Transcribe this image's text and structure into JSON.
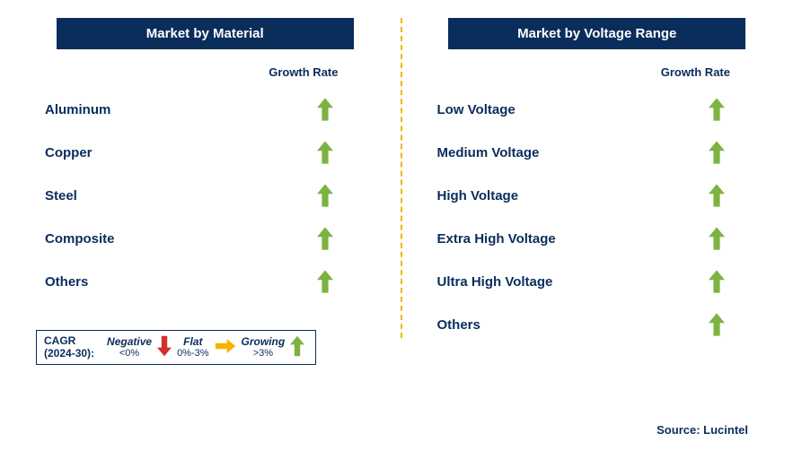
{
  "colors": {
    "brand_dark": "#0a2d5c",
    "arrow_green": "#7cb342",
    "arrow_red": "#d32f2f",
    "arrow_yellow": "#f4b400",
    "divider": "#f4b400",
    "bg": "#ffffff"
  },
  "left_panel": {
    "title": "Market by Material",
    "growth_label": "Growth Rate",
    "rows": [
      {
        "label": "Aluminum",
        "trend": "up"
      },
      {
        "label": "Copper",
        "trend": "up"
      },
      {
        "label": "Steel",
        "trend": "up"
      },
      {
        "label": "Composite",
        "trend": "up"
      },
      {
        "label": "Others",
        "trend": "up"
      }
    ]
  },
  "right_panel": {
    "title": "Market by Voltage Range",
    "growth_label": "Growth Rate",
    "rows": [
      {
        "label": "Low Voltage",
        "trend": "up"
      },
      {
        "label": "Medium Voltage",
        "trend": "up"
      },
      {
        "label": "High Voltage",
        "trend": "up"
      },
      {
        "label": "Extra High Voltage",
        "trend": "up"
      },
      {
        "label": "Ultra High Voltage",
        "trend": "up"
      },
      {
        "label": "Others",
        "trend": "up"
      }
    ]
  },
  "legend": {
    "prefix_line1": "CAGR",
    "prefix_line2": "(2024-30):",
    "items": [
      {
        "top": "Negative",
        "bottom": "<0%",
        "icon": "down"
      },
      {
        "top": "Flat",
        "bottom": "0%-3%",
        "icon": "right"
      },
      {
        "top": "Growing",
        "bottom": ">3%",
        "icon": "up"
      }
    ]
  },
  "source": "Source: Lucintel"
}
